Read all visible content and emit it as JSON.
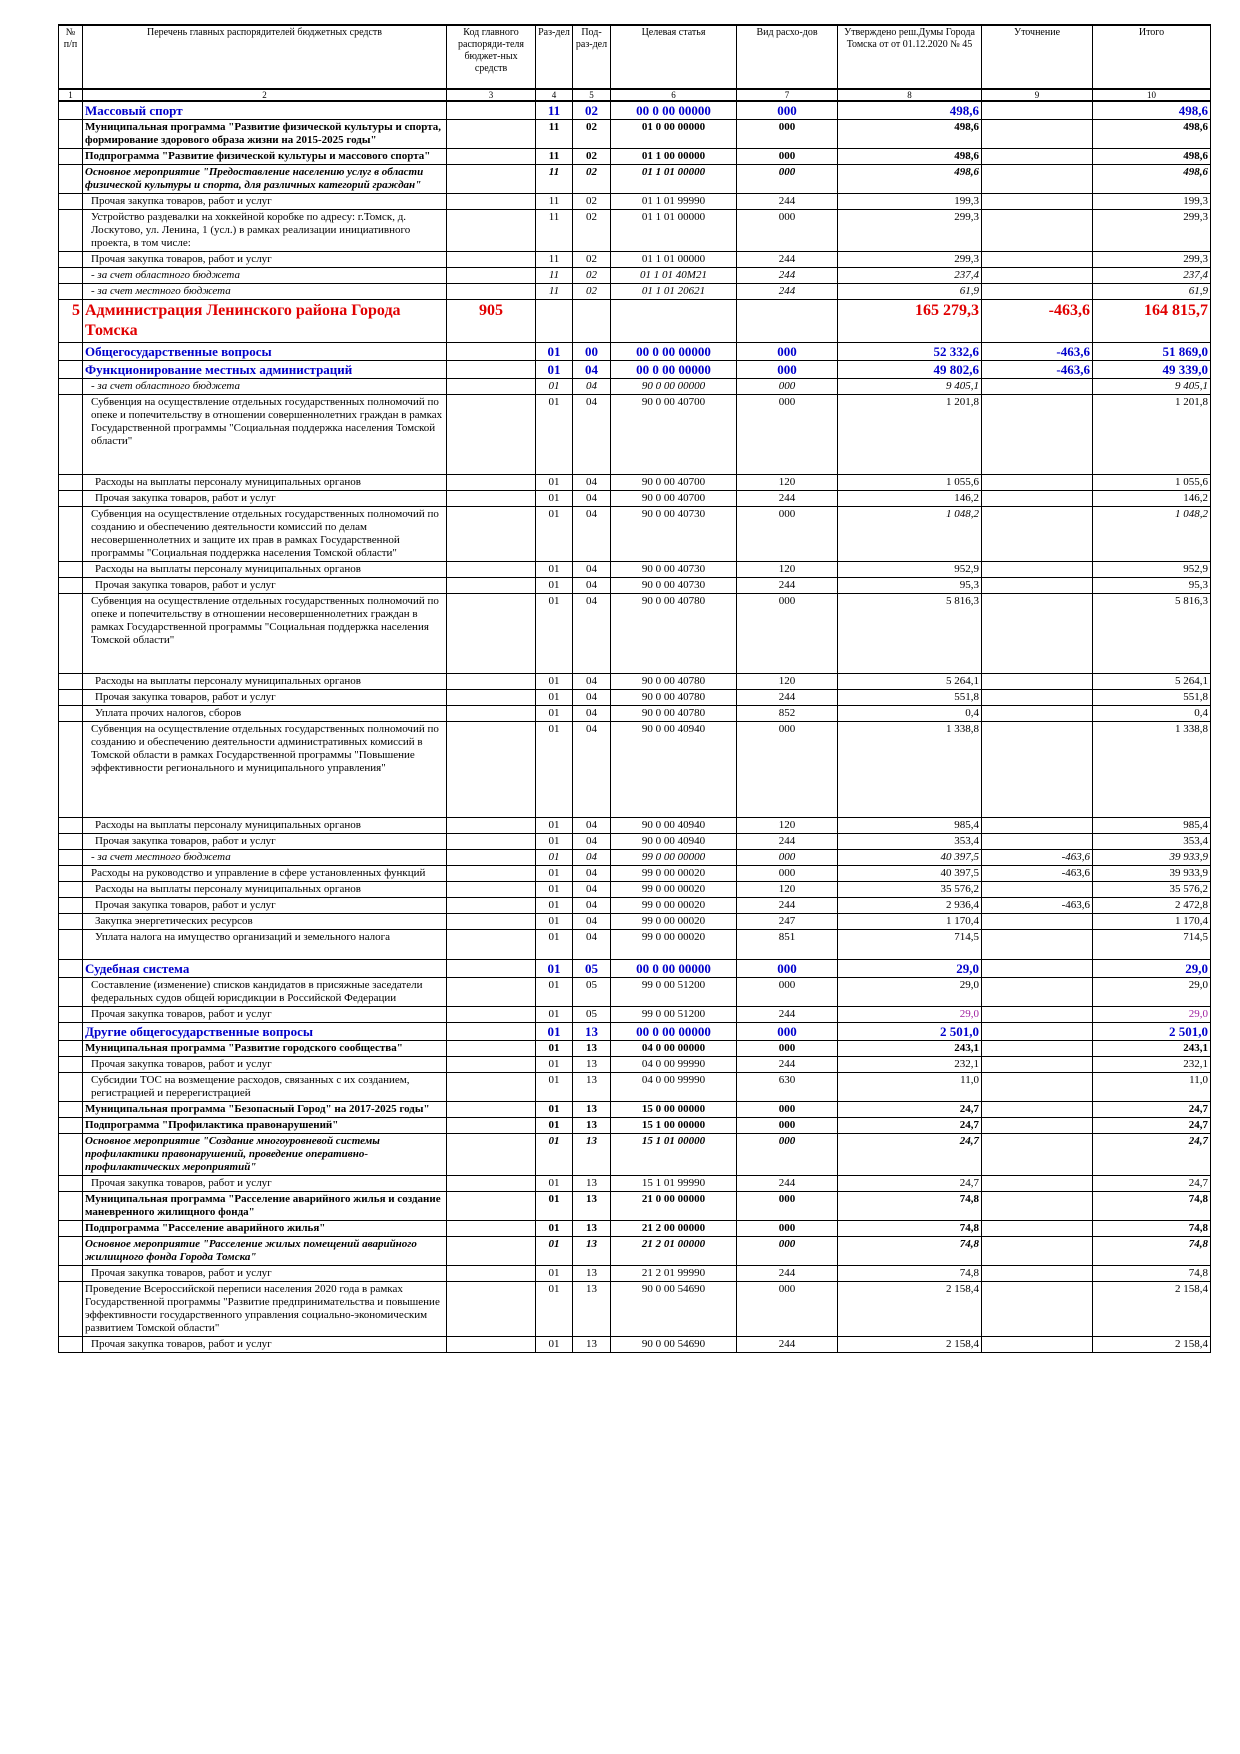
{
  "header": {
    "c1": "№ п/п",
    "c2": "Перечень главных распорядителей бюджетных средств",
    "c3": "Код главного распоряди-теля бюджет-ных средств",
    "c4": "Раз-дел",
    "c5": "Под-раз-дел",
    "c6": "Целевая статья",
    "c7": "Вид расхо-дов",
    "c8": "Утверждено реш.Думы Города Томска от от 01.12.2020 № 45",
    "c9": "Уточнение",
    "c10": "Итого"
  },
  "colnums": [
    "1",
    "2",
    "3",
    "4",
    "5",
    "6",
    "7",
    "8",
    "9",
    "10"
  ],
  "rows": [
    {
      "style": "blue",
      "n": "",
      "name": "Массовый спорт",
      "code": "",
      "r": "11",
      "p": "02",
      "cs": "00 0 00 00000",
      "vr": "000",
      "a": "498,6",
      "u": "",
      "t": "498,6"
    },
    {
      "style": "bold",
      "n": "",
      "name": "Муниципальная программа \"Развитие физической культуры и спорта, формирование здорового образа жизни на 2015-2025 годы\"",
      "code": "",
      "r": "11",
      "p": "02",
      "cs": "01 0 00 00000",
      "vr": "000",
      "a": "498,6",
      "u": "",
      "t": "498,6"
    },
    {
      "style": "bold",
      "n": "",
      "name": "Подпрограмма \"Развитие физической культуры и массового спорта\"",
      "code": "",
      "r": "11",
      "p": "02",
      "cs": "01 1 00 00000",
      "vr": "000",
      "a": "498,6",
      "u": "",
      "t": "498,6"
    },
    {
      "style": "bi",
      "n": "",
      "name": "Основное мероприятие \"Предоставление населению услуг в области физической культуры и спорта, для различных категорий граждан\"",
      "code": "",
      "r": "11",
      "p": "02",
      "cs": "01 1 01 00000",
      "vr": "000",
      "a": "498,6",
      "u": "",
      "t": "498,6"
    },
    {
      "style": "ind",
      "n": "",
      "name": "Прочая закупка товаров, работ и услуг",
      "code": "",
      "r": "11",
      "p": "02",
      "cs": "01 1 01 99990",
      "vr": "244",
      "a": "199,3",
      "u": "",
      "t": "199,3"
    },
    {
      "style": "ind",
      "n": "",
      "name": "Устройство раздевалки на хоккейной коробке по адресу: г.Томск, д. Лоскутово, ул. Ленина, 1 (усл.) в рамках реализации инициативного проекта, в том числе:",
      "code": "",
      "r": "11",
      "p": "02",
      "cs": "01 1 01 00000",
      "vr": "000",
      "a": "299,3",
      "u": "",
      "t": "299,3"
    },
    {
      "style": "ind",
      "n": "",
      "name": "Прочая закупка товаров, работ и услуг",
      "code": "",
      "r": "11",
      "p": "02",
      "cs": "01 1 01 00000",
      "vr": "244",
      "a": "299,3",
      "u": "",
      "t": "299,3"
    },
    {
      "style": "it",
      "n": "",
      "name": "- за счет областного бюджета",
      "code": "",
      "r": "11",
      "p": "02",
      "cs": "01 1 01 40М21",
      "vr": "244",
      "a": "237,4",
      "u": "",
      "t": "237,4"
    },
    {
      "style": "it",
      "n": "",
      "name": "- за счет местного бюджета",
      "code": "",
      "r": "11",
      "p": "02",
      "cs": "01 1 01 20621",
      "vr": "244",
      "a": "61,9",
      "u": "",
      "t": "61,9"
    },
    {
      "style": "red",
      "n": "5",
      "name": "Администрация Ленинского района Города Томска",
      "code": "905",
      "r": "",
      "p": "",
      "cs": "",
      "vr": "",
      "a": "165 279,3",
      "u": "-463,6",
      "t": "164 815,7"
    },
    {
      "style": "blue",
      "n": "",
      "name": "Общегосударственные вопросы",
      "code": "",
      "r": "01",
      "p": "00",
      "cs": "00 0 00 00000",
      "vr": "000",
      "a": "52 332,6",
      "u": "-463,6",
      "t": "51 869,0"
    },
    {
      "style": "blue",
      "n": "",
      "name": "Функционирование местных администраций",
      "code": "",
      "r": "01",
      "p": "04",
      "cs": "00 0 00 00000",
      "vr": "000",
      "a": "49 802,6",
      "u": "-463,6",
      "t": "49 339,0"
    },
    {
      "style": "it",
      "n": "",
      "name": "- за счет областного бюджета",
      "code": "",
      "r": "01",
      "p": "04",
      "cs": "90 0 00 00000",
      "vr": "000",
      "a": "9 405,1",
      "u": "",
      "t": "9 405,1"
    },
    {
      "style": "ind",
      "n": "",
      "name": "Субвенция на осуществление отдельных государственных полномочий по опеке и попечительству в отношении совершеннолетних граждан в рамках Государственной программы \"Социальная поддержка населения Томской области\"",
      "code": "",
      "r": "01",
      "p": "04",
      "cs": "90 0 00 40700",
      "vr": "000",
      "a": "1 201,8",
      "u": "",
      "t": "1 201,8",
      "h": 80
    },
    {
      "style": "ind2",
      "n": "",
      "name": "Расходы на выплаты персоналу муниципальных органов",
      "code": "",
      "r": "01",
      "p": "04",
      "cs": "90 0 00 40700",
      "vr": "120",
      "a": "1 055,6",
      "u": "",
      "t": "1 055,6"
    },
    {
      "style": "ind2",
      "n": "",
      "name": "Прочая закупка товаров, работ и услуг",
      "code": "",
      "r": "01",
      "p": "04",
      "cs": "90 0 00 40700",
      "vr": "244",
      "a": "146,2",
      "u": "",
      "t": "146,2"
    },
    {
      "style": "ind",
      "n": "",
      "name": "Субвенция на осуществление отдельных государственных полномочий по созданию и обеспечению деятельности комиссий по делам несовершеннолетних и защите их прав в рамках Государственной программы \"Социальная поддержка населения Томской области\"",
      "code": "",
      "r": "01",
      "p": "04",
      "cs": "90 0 00 40730",
      "vr": "000",
      "a": "1 048,2",
      "u": "",
      "t": "1 048,2",
      "ai": true
    },
    {
      "style": "ind2",
      "n": "",
      "name": "Расходы на выплаты персоналу муниципальных органов",
      "code": "",
      "r": "01",
      "p": "04",
      "cs": "90 0 00 40730",
      "vr": "120",
      "a": "952,9",
      "u": "",
      "t": "952,9"
    },
    {
      "style": "ind2",
      "n": "",
      "name": "Прочая закупка товаров, работ и услуг",
      "code": "",
      "r": "01",
      "p": "04",
      "cs": "90 0 00 40730",
      "vr": "244",
      "a": "95,3",
      "u": "",
      "t": "95,3"
    },
    {
      "style": "ind",
      "n": "",
      "name": "Субвенция на осуществление отдельных государственных полномочий по опеке и попечительству в отношении несовершеннолетних граждан в рамках Государственной программы \"Социальная поддержка населения Томской области\"",
      "code": "",
      "r": "01",
      "p": "04",
      "cs": "90 0 00 40780",
      "vr": "000",
      "a": "5 816,3",
      "u": "",
      "t": "5 816,3",
      "h": 80
    },
    {
      "style": "ind2",
      "n": "",
      "name": "Расходы на выплаты персоналу муниципальных органов",
      "code": "",
      "r": "01",
      "p": "04",
      "cs": "90 0 00 40780",
      "vr": "120",
      "a": "5 264,1",
      "u": "",
      "t": "5 264,1"
    },
    {
      "style": "ind2",
      "n": "",
      "name": "Прочая закупка товаров, работ и услуг",
      "code": "",
      "r": "01",
      "p": "04",
      "cs": "90 0 00 40780",
      "vr": "244",
      "a": "551,8",
      "u": "",
      "t": "551,8"
    },
    {
      "style": "ind2",
      "n": "",
      "name": "Уплата прочих налогов, сборов",
      "code": "",
      "r": "01",
      "p": "04",
      "cs": "90 0 00 40780",
      "vr": "852",
      "a": "0,4",
      "u": "",
      "t": "0,4"
    },
    {
      "style": "ind",
      "n": "",
      "name": "Субвенция на осуществление отдельных государственных полномочий по созданию и обеспечению деятельности административных комиссий в Томской области в рамках Государственной программы \"Повышение эффективности регионального и муниципального управления\"",
      "code": "",
      "r": "01",
      "p": "04",
      "cs": "90 0 00 40940",
      "vr": "000",
      "a": "1 338,8",
      "u": "",
      "t": "1 338,8",
      "h": 96
    },
    {
      "style": "ind2",
      "n": "",
      "name": "Расходы на выплаты персоналу муниципальных органов",
      "code": "",
      "r": "01",
      "p": "04",
      "cs": "90 0 00 40940",
      "vr": "120",
      "a": "985,4",
      "u": "",
      "t": "985,4"
    },
    {
      "style": "ind2",
      "n": "",
      "name": "Прочая закупка товаров, работ и услуг",
      "code": "",
      "r": "01",
      "p": "04",
      "cs": "90 0 00 40940",
      "vr": "244",
      "a": "353,4",
      "u": "",
      "t": "353,4"
    },
    {
      "style": "it",
      "n": "",
      "name": "- за счет местного бюджета",
      "code": "",
      "r": "01",
      "p": "04",
      "cs": "99 0 00 00000",
      "vr": "000",
      "a": "40 397,5",
      "u": "-463,6",
      "t": "39 933,9"
    },
    {
      "style": "ind",
      "n": "",
      "name": "Расходы на руководство и управление в сфере установленных функций",
      "code": "",
      "r": "01",
      "p": "04",
      "cs": "99 0 00 00020",
      "vr": "000",
      "a": "40 397,5",
      "u": "-463,6",
      "t": "39 933,9"
    },
    {
      "style": "ind2",
      "n": "",
      "name": "Расходы на выплаты персоналу муниципальных органов",
      "code": "",
      "r": "01",
      "p": "04",
      "cs": "99 0 00 00020",
      "vr": "120",
      "a": "35 576,2",
      "u": "",
      "t": "35 576,2"
    },
    {
      "style": "ind2",
      "n": "",
      "name": "Прочая закупка товаров, работ и услуг",
      "code": "",
      "r": "01",
      "p": "04",
      "cs": "99 0 00 00020",
      "vr": "244",
      "a": "2 936,4",
      "u": "-463,6",
      "t": "2 472,8"
    },
    {
      "style": "ind2",
      "n": "",
      "name": "Закупка энергетических ресурсов",
      "code": "",
      "r": "01",
      "p": "04",
      "cs": "99 0 00 00020",
      "vr": "247",
      "a": "1 170,4",
      "u": "",
      "t": "1 170,4"
    },
    {
      "style": "ind2",
      "n": "",
      "name": "Уплата налога на имущество организаций и земельного налога",
      "code": "",
      "r": "01",
      "p": "04",
      "cs": "99 0 00 00020",
      "vr": "851",
      "a": "714,5",
      "u": "",
      "t": "714,5",
      "h": 30
    },
    {
      "style": "blue",
      "n": "",
      "name": "Судебная система",
      "code": "",
      "r": "01",
      "p": "05",
      "cs": "00 0 00 00000",
      "vr": "000",
      "a": "29,0",
      "u": "",
      "t": "29,0"
    },
    {
      "style": "ind",
      "n": "",
      "name": "Составление (изменение) списков кандидатов в присяжные заседатели федеральных судов общей юрисдикции в Российской Федерации",
      "code": "",
      "r": "01",
      "p": "05",
      "cs": "99 0 00 51200",
      "vr": "000",
      "a": "29,0",
      "u": "",
      "t": "29,0"
    },
    {
      "style": "ind",
      "n": "",
      "name": "Прочая закупка товаров, работ и услуг",
      "code": "",
      "r": "01",
      "p": "05",
      "cs": "99 0 00 51200",
      "vr": "244",
      "a": "29,0",
      "u": "",
      "t": "29,0",
      "mag": true
    },
    {
      "style": "blue",
      "n": "",
      "name": "Другие общегосударственные вопросы",
      "code": "",
      "r": "01",
      "p": "13",
      "cs": "00 0 00 00000",
      "vr": "000",
      "a": "2 501,0",
      "u": "",
      "t": "2 501,0"
    },
    {
      "style": "bold",
      "n": "",
      "name": "Муниципальная программа \"Развитие городского сообщества\"",
      "code": "",
      "r": "01",
      "p": "13",
      "cs": "04 0 00 00000",
      "vr": "000",
      "a": "243,1",
      "u": "",
      "t": "243,1"
    },
    {
      "style": "ind",
      "n": "",
      "name": "Прочая закупка товаров, работ и услуг",
      "code": "",
      "r": "01",
      "p": "13",
      "cs": "04 0 00 99990",
      "vr": "244",
      "a": "232,1",
      "u": "",
      "t": "232,1"
    },
    {
      "style": "ind",
      "n": "",
      "name": "Субсидии ТОС на возмещение расходов, связанных с их созданием, регистрацией и перерегистрацией",
      "code": "",
      "r": "01",
      "p": "13",
      "cs": "04 0 00 99990",
      "vr": "630",
      "a": "11,0",
      "u": "",
      "t": "11,0"
    },
    {
      "style": "bold",
      "n": "",
      "name": "Муниципальная программа \"Безопасный Город\" на 2017-2025 годы\"",
      "code": "",
      "r": "01",
      "p": "13",
      "cs": "15 0 00 00000",
      "vr": "000",
      "a": "24,7",
      "u": "",
      "t": "24,7"
    },
    {
      "style": "bold",
      "n": "",
      "name": "Подпрограмма \"Профилактика правонарушений\"",
      "code": "",
      "r": "01",
      "p": "13",
      "cs": "15 1 00 00000",
      "vr": "000",
      "a": "24,7",
      "u": "",
      "t": "24,7"
    },
    {
      "style": "bi",
      "n": "",
      "name": "Основное мероприятие \"Создание многоуровневой системы профилактики правонарушений, проведение оперативно-профилактических мероприятий\"",
      "code": "",
      "r": "01",
      "p": "13",
      "cs": "15 1 01 00000",
      "vr": "000",
      "a": "24,7",
      "u": "",
      "t": "24,7"
    },
    {
      "style": "ind",
      "n": "",
      "name": "Прочая закупка товаров, работ и услуг",
      "code": "",
      "r": "01",
      "p": "13",
      "cs": "15 1 01 99990",
      "vr": "244",
      "a": "24,7",
      "u": "",
      "t": "24,7"
    },
    {
      "style": "bold",
      "n": "",
      "name": "Муниципальная программа \"Расселение аварийного жилья и создание маневренного жилищного фонда\"",
      "code": "",
      "r": "01",
      "p": "13",
      "cs": "21 0 00 00000",
      "vr": "000",
      "a": "74,8",
      "u": "",
      "t": "74,8"
    },
    {
      "style": "bold",
      "n": "",
      "name": "Подпрограмма \"Расселение аварийного жилья\"",
      "code": "",
      "r": "01",
      "p": "13",
      "cs": "21 2 00 00000",
      "vr": "000",
      "a": "74,8",
      "u": "",
      "t": "74,8"
    },
    {
      "style": "bi",
      "n": "",
      "name": "Основное мероприятие \"Расселение жилых помещений аварийного жилищного фонда Города Томска\"",
      "code": "",
      "r": "01",
      "p": "13",
      "cs": "21 2 01 00000",
      "vr": "000",
      "a": "74,8",
      "u": "",
      "t": "74,8"
    },
    {
      "style": "ind",
      "n": "",
      "name": "Прочая закупка товаров, работ и услуг",
      "code": "",
      "r": "01",
      "p": "13",
      "cs": "21 2 01 99990",
      "vr": "244",
      "a": "74,8",
      "u": "",
      "t": "74,8"
    },
    {
      "style": "plain",
      "n": "",
      "name": "Проведение Всероссийской переписи населения 2020 года в рамках Государственной программы \"Развитие предпринимательства и повышение эффективности государственного управления социально-экономическим развитием Томской области\"",
      "code": "",
      "r": "01",
      "p": "13",
      "cs": "90 0 00 54690",
      "vr": "000",
      "a": "2 158,4",
      "u": "",
      "t": "2 158,4"
    },
    {
      "style": "ind",
      "n": "",
      "name": "Прочая закупка товаров, работ и услуг",
      "code": "",
      "r": "01",
      "p": "13",
      "cs": "90 0 00 54690",
      "vr": "244",
      "a": "2 158,4",
      "u": "",
      "t": "2 158,4"
    }
  ]
}
